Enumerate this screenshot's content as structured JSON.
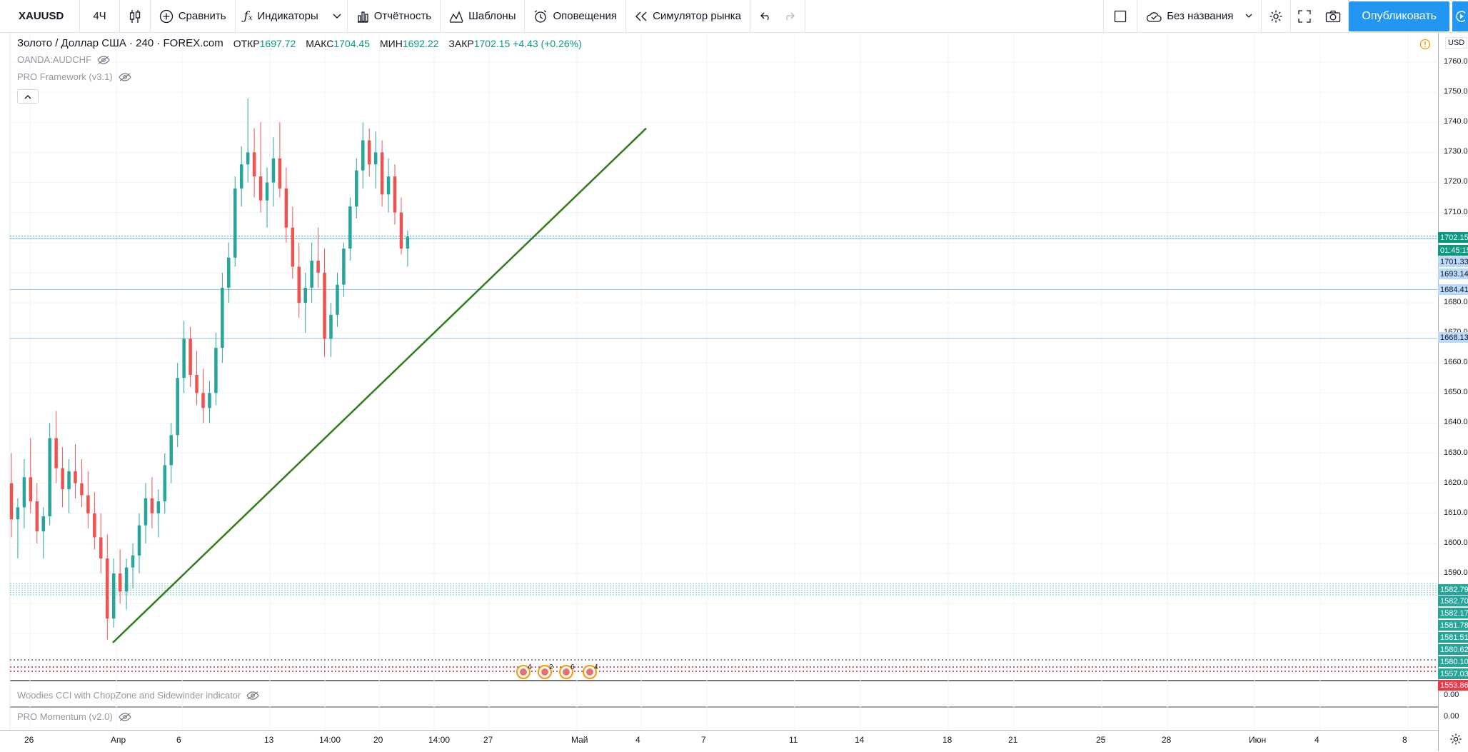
{
  "toolbar": {
    "symbol": "XAUUSD",
    "interval": "4Ч",
    "compare": "Сравнить",
    "indicators": "Индикаторы",
    "reports": "Отчётность",
    "templates": "Шаблоны",
    "alerts": "Оповещения",
    "replay": "Симулятор рынка",
    "layout_name": "Без названия",
    "publish": "Опубликовать"
  },
  "legend": {
    "title": "Золото / Доллар США · 240 · FOREX.com",
    "open_label": "ОТКР",
    "open": "1697.72",
    "high_label": "МАКС",
    "high": "1704.45",
    "low_label": "МИН",
    "low": "1692.22",
    "close_label": "ЗАКР",
    "close": "1702.15 +4.43 (+0.26%)",
    "overlay1": "OANDA:AUDCHF",
    "overlay2": "PRO Framework (v3.1)"
  },
  "indicators": {
    "pane1": "Woodies CCI with ChopZone and Sidewinder indicator",
    "pane2": "PRO Momentum (v2.0)"
  },
  "price_axis": {
    "currency": "USD",
    "ticks": [
      "1760.00",
      "1750.00",
      "1740.00",
      "1730.00",
      "1720.00",
      "1710.00",
      "1680.00",
      "1670.00",
      "1660.00",
      "1650.00",
      "1640.00",
      "1630.00",
      "1620.00",
      "1610.00",
      "1600.00",
      "1590.00"
    ],
    "tags": [
      {
        "text": "1702.15",
        "color": "#089981"
      },
      {
        "text": "01:45:15",
        "color": "#089981"
      },
      {
        "text": "1701.33",
        "color": "#bbd9fb"
      },
      {
        "text": "1693.14",
        "color": "#bbd9fb"
      },
      {
        "text": "1684.41",
        "color": "#bbd9fb"
      },
      {
        "text": "1668.13",
        "color": "#bbd9fb"
      },
      {
        "text": "1582.79",
        "color": "#26a69a"
      },
      {
        "text": "1582.70",
        "color": "#26a69a"
      },
      {
        "text": "1582.17",
        "color": "#26a69a"
      },
      {
        "text": "1581.78",
        "color": "#26a69a"
      },
      {
        "text": "1581.51",
        "color": "#26a69a"
      },
      {
        "text": "1580.62",
        "color": "#26a69a"
      },
      {
        "text": "1580.10",
        "color": "#26a69a"
      },
      {
        "text": "1557.03",
        "color": "#26a69a"
      },
      {
        "text": "1553.86",
        "color": "#f23645"
      }
    ],
    "pane1_value": "0.00",
    "pane2_value": "0.00"
  },
  "time_axis": {
    "labels": [
      "26",
      "Апр",
      "6",
      "13",
      "14:00",
      "20",
      "14:00",
      "27",
      "Май",
      "4",
      "7",
      "11",
      "14",
      "18",
      "21",
      "25",
      "28",
      "Июн",
      "4",
      "8"
    ]
  },
  "events": [
    "4",
    "2",
    "6",
    "4"
  ],
  "colors": {
    "up": "#26a69a",
    "down": "#ef5350",
    "trendline": "#2e7d1a",
    "accent": "#2196f3"
  },
  "chart_data": {
    "type": "candlestick",
    "symbol": "XAUUSD",
    "timeframe": "240",
    "trendline": {
      "from_price": 1567,
      "to_price": 1738
    },
    "ohlc_approx": [
      [
        1620,
        1630,
        1602,
        1608
      ],
      [
        1608,
        1615,
        1595,
        1612
      ],
      [
        1612,
        1628,
        1605,
        1622
      ],
      [
        1622,
        1635,
        1610,
        1614
      ],
      [
        1614,
        1620,
        1600,
        1604
      ],
      [
        1604,
        1612,
        1595,
        1609
      ],
      [
        1609,
        1640,
        1606,
        1635
      ],
      [
        1635,
        1644,
        1620,
        1625
      ],
      [
        1625,
        1632,
        1612,
        1618
      ],
      [
        1618,
        1628,
        1610,
        1624
      ],
      [
        1624,
        1633,
        1615,
        1620
      ],
      [
        1620,
        1628,
        1612,
        1616
      ],
      [
        1616,
        1624,
        1605,
        1610
      ],
      [
        1610,
        1617,
        1598,
        1602
      ],
      [
        1602,
        1610,
        1590,
        1595
      ],
      [
        1595,
        1603,
        1568,
        1575
      ],
      [
        1575,
        1595,
        1572,
        1590
      ],
      [
        1590,
        1598,
        1580,
        1584
      ],
      [
        1584,
        1595,
        1578,
        1592
      ],
      [
        1592,
        1600,
        1585,
        1596
      ],
      [
        1596,
        1610,
        1590,
        1606
      ],
      [
        1606,
        1620,
        1600,
        1615
      ],
      [
        1615,
        1622,
        1605,
        1610
      ],
      [
        1610,
        1618,
        1602,
        1614
      ],
      [
        1614,
        1630,
        1610,
        1626
      ],
      [
        1626,
        1640,
        1620,
        1636
      ],
      [
        1636,
        1660,
        1632,
        1655
      ],
      [
        1655,
        1674,
        1650,
        1668
      ],
      [
        1668,
        1672,
        1652,
        1656
      ],
      [
        1656,
        1664,
        1646,
        1650
      ],
      [
        1650,
        1658,
        1640,
        1645
      ],
      [
        1645,
        1654,
        1640,
        1650
      ],
      [
        1650,
        1670,
        1646,
        1665
      ],
      [
        1665,
        1690,
        1660,
        1685
      ],
      [
        1685,
        1700,
        1680,
        1695
      ],
      [
        1695,
        1722,
        1692,
        1718
      ],
      [
        1718,
        1732,
        1712,
        1726
      ],
      [
        1726,
        1748,
        1720,
        1730
      ],
      [
        1730,
        1738,
        1715,
        1722
      ],
      [
        1722,
        1740,
        1710,
        1714
      ],
      [
        1714,
        1725,
        1705,
        1720
      ],
      [
        1720,
        1735,
        1712,
        1728
      ],
      [
        1728,
        1740,
        1715,
        1718
      ],
      [
        1718,
        1725,
        1700,
        1705
      ],
      [
        1705,
        1712,
        1688,
        1692
      ],
      [
        1692,
        1700,
        1675,
        1680
      ],
      [
        1680,
        1690,
        1670,
        1685
      ],
      [
        1685,
        1700,
        1680,
        1694
      ],
      [
        1694,
        1705,
        1685,
        1690
      ],
      [
        1690,
        1698,
        1662,
        1668
      ],
      [
        1668,
        1680,
        1662,
        1676
      ],
      [
        1676,
        1690,
        1672,
        1686
      ],
      [
        1686,
        1700,
        1682,
        1698
      ],
      [
        1698,
        1715,
        1694,
        1712
      ],
      [
        1712,
        1728,
        1708,
        1724
      ],
      [
        1724,
        1740,
        1718,
        1734
      ],
      [
        1734,
        1738,
        1722,
        1726
      ],
      [
        1726,
        1737,
        1718,
        1730
      ],
      [
        1730,
        1734,
        1712,
        1716
      ],
      [
        1716,
        1728,
        1710,
        1722
      ],
      [
        1722,
        1726,
        1706,
        1710
      ],
      [
        1710,
        1715,
        1696,
        1698
      ],
      [
        1698,
        1704,
        1692,
        1702
      ]
    ]
  }
}
